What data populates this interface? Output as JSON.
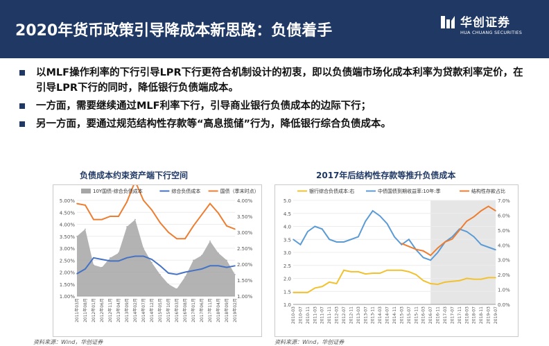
{
  "header": {
    "title": "2020年货币政策引导降成本新思路：负债着手",
    "logo_cn": "华创证券",
    "logo_en": "HUA CHUANG SECURITIES",
    "background": "#1f3864"
  },
  "bullets": [
    "以MLF操作利率的下行引导LPR下行更符合机制设计的初衷，即以负债端市场化成本利率为贷款利率定价，在引导LPR下行的同时，降低银行负债端成本。",
    "一方面，需要继续通过MLF利率下行，引导商业银行负债成本的边际下行；",
    "另一方面，要通过规范结构性存款等“高息揽储”行为，降低银行综合负债成本。"
  ],
  "charts": {
    "left": {
      "title": "负债成本约束资产端下行空间",
      "source": "资料来源：Wind，华创证券"
    },
    "right": {
      "title": "2017年后结构性存款等推升负债成本",
      "source": "资料来源：Wind，华创证券"
    }
  },
  "chart_data": [
    {
      "type": "line",
      "title": "负债成本约束资产端下行空间",
      "x": [
        "2011年03月",
        "2011年08月",
        "2012年01月",
        "2012年06月",
        "2012年11月",
        "2013年04月",
        "2013年09月",
        "2014年02月",
        "2014年07月",
        "2014年12月",
        "2015年05月",
        "2015年10月",
        "2016年03月",
        "2016年08月",
        "2017年01月",
        "2017年06月",
        "2017年11月",
        "2018年04月",
        "2018年09月",
        "2019年02月"
      ],
      "left_axis": {
        "ticks": [
          "5.00%",
          "4.50%",
          "4.00%",
          "3.50%",
          "3.00%",
          "2.50%",
          "2.00%",
          "1.50%",
          "1.00%"
        ],
        "ylim": [
          1.0,
          5.0
        ]
      },
      "right_axis": {
        "ticks": [
          "4.00%",
          "3.50%",
          "3.00%",
          "2.50%",
          "2.00%",
          "1.50%",
          "1.00%"
        ],
        "ylim": [
          1.0,
          4.0
        ]
      },
      "series": [
        {
          "name": "10Y国债-综合负债成本",
          "kind": "area",
          "axis": "left",
          "color": "#a6a6a6",
          "values": [
            3.5,
            3.8,
            2.3,
            2.2,
            2.6,
            2.8,
            3.9,
            4.2,
            3.0,
            2.4,
            1.9,
            1.5,
            1.3,
            1.8,
            2.5,
            2.7,
            3.3,
            2.8,
            2.5,
            1.9
          ]
        },
        {
          "name": "综合负债成本",
          "kind": "line",
          "axis": "right",
          "color": "#4472c4",
          "values": [
            1.7,
            1.85,
            2.2,
            2.15,
            2.1,
            2.1,
            2.2,
            2.25,
            2.25,
            2.15,
            1.95,
            1.72,
            1.68,
            1.75,
            1.8,
            1.85,
            1.95,
            1.95,
            1.9,
            1.95
          ]
        },
        {
          "name": "国债（季末时点）",
          "kind": "line",
          "axis": "right",
          "color": "#ed7d31",
          "values": [
            3.9,
            3.85,
            3.4,
            3.4,
            3.5,
            3.5,
            3.95,
            4.6,
            4.0,
            3.7,
            3.3,
            3.0,
            2.8,
            2.8,
            3.2,
            3.55,
            3.9,
            3.6,
            3.2,
            3.1
          ]
        }
      ]
    },
    {
      "type": "line",
      "title": "2017年后结构性存款等推升负债成本",
      "x": [
        "2010-03",
        "2010-07",
        "2010-11",
        "2011-03",
        "2011-07",
        "2011-11",
        "2012-03",
        "2012-07",
        "2012-11",
        "2013-03",
        "2013-07",
        "2013-11",
        "2014-03",
        "2014-07",
        "2014-11",
        "2015-03",
        "2015-07",
        "2015-11",
        "2016-03",
        "2016-07",
        "2016-11",
        "2017-03",
        "2017-07",
        "2017-11",
        "2018-03",
        "2018-07",
        "2018-11",
        "2019-03",
        "2019-07"
      ],
      "left_axis": {
        "ticks": [
          "5.0",
          "4.5",
          "4.0",
          "3.5",
          "3.0",
          "2.5",
          "2.0",
          "1.5",
          "1.0"
        ],
        "ylim": [
          1.0,
          5.0
        ]
      },
      "right_axis": {
        "ticks": [
          "7.0%",
          "6.0%",
          "5.0%",
          "4.0%",
          "3.0%",
          "2.0%",
          "1.0%",
          "0.0%"
        ],
        "ylim": [
          0.0,
          7.0
        ]
      },
      "shaded_region": [
        "2016-07",
        "2019-07"
      ],
      "series": [
        {
          "name": "银行综合负债成本:右",
          "axis": "right",
          "color": "#f2c12e",
          "values": [
            0.8,
            0.8,
            0.8,
            1.1,
            1.2,
            1.5,
            1.4,
            2.3,
            2.2,
            2.2,
            2.05,
            2.1,
            2.1,
            2.3,
            2.3,
            2.3,
            2.2,
            2.0,
            1.6,
            1.4,
            1.35,
            1.5,
            1.55,
            1.6,
            1.75,
            1.7,
            1.7,
            1.8,
            1.8
          ]
        },
        {
          "name": "中债国债到期收益率:10年:季",
          "axis": "left",
          "color": "#5b9bd5",
          "values": [
            3.5,
            3.3,
            3.8,
            4.0,
            3.9,
            3.5,
            3.4,
            3.4,
            3.5,
            3.6,
            4.2,
            4.6,
            4.4,
            4.1,
            3.6,
            3.3,
            3.5,
            3.1,
            2.8,
            2.7,
            3.0,
            3.4,
            3.6,
            3.9,
            3.8,
            3.6,
            3.3,
            3.2,
            3.1
          ]
        },
        {
          "name": "结构性存款占比",
          "axis": "right",
          "color": "#ed7d31",
          "values": [
            null,
            null,
            null,
            null,
            null,
            null,
            null,
            null,
            null,
            null,
            null,
            null,
            null,
            null,
            null,
            4.1,
            3.9,
            3.7,
            3.6,
            3.3,
            3.8,
            4.2,
            4.4,
            5.0,
            5.6,
            5.9,
            6.3,
            6.6,
            6.3
          ]
        }
      ]
    }
  ]
}
